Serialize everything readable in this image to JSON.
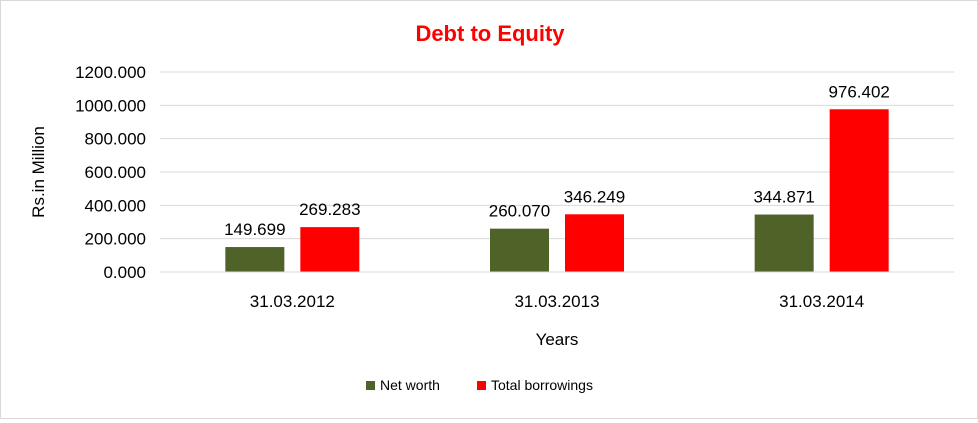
{
  "chart_data": {
    "type": "bar",
    "title": "Debt to Equity",
    "xlabel": "Years",
    "ylabel": "Rs.in Million",
    "categories": [
      "31.03.2012",
      "31.03.2013",
      "31.03.2014"
    ],
    "series": [
      {
        "name": "Net worth",
        "color": "#4f6228",
        "values": [
          149.699,
          260.07,
          344.871
        ],
        "labels": [
          "149.699",
          "260.070",
          "344.871"
        ]
      },
      {
        "name": "Total borrowings",
        "color": "#ff0000",
        "values": [
          269.283,
          346.249,
          976.402
        ],
        "labels": [
          "269.283",
          "346.249",
          "976.402"
        ]
      }
    ],
    "ylim": [
      0,
      1200
    ],
    "yticks": [
      "0.000",
      "200.000",
      "400.000",
      "600.000",
      "800.000",
      "1000.000",
      "1200.000"
    ],
    "ytick_values": [
      0,
      200,
      400,
      600,
      800,
      1000,
      1200
    ],
    "grid": true,
    "legend": "bottom"
  }
}
